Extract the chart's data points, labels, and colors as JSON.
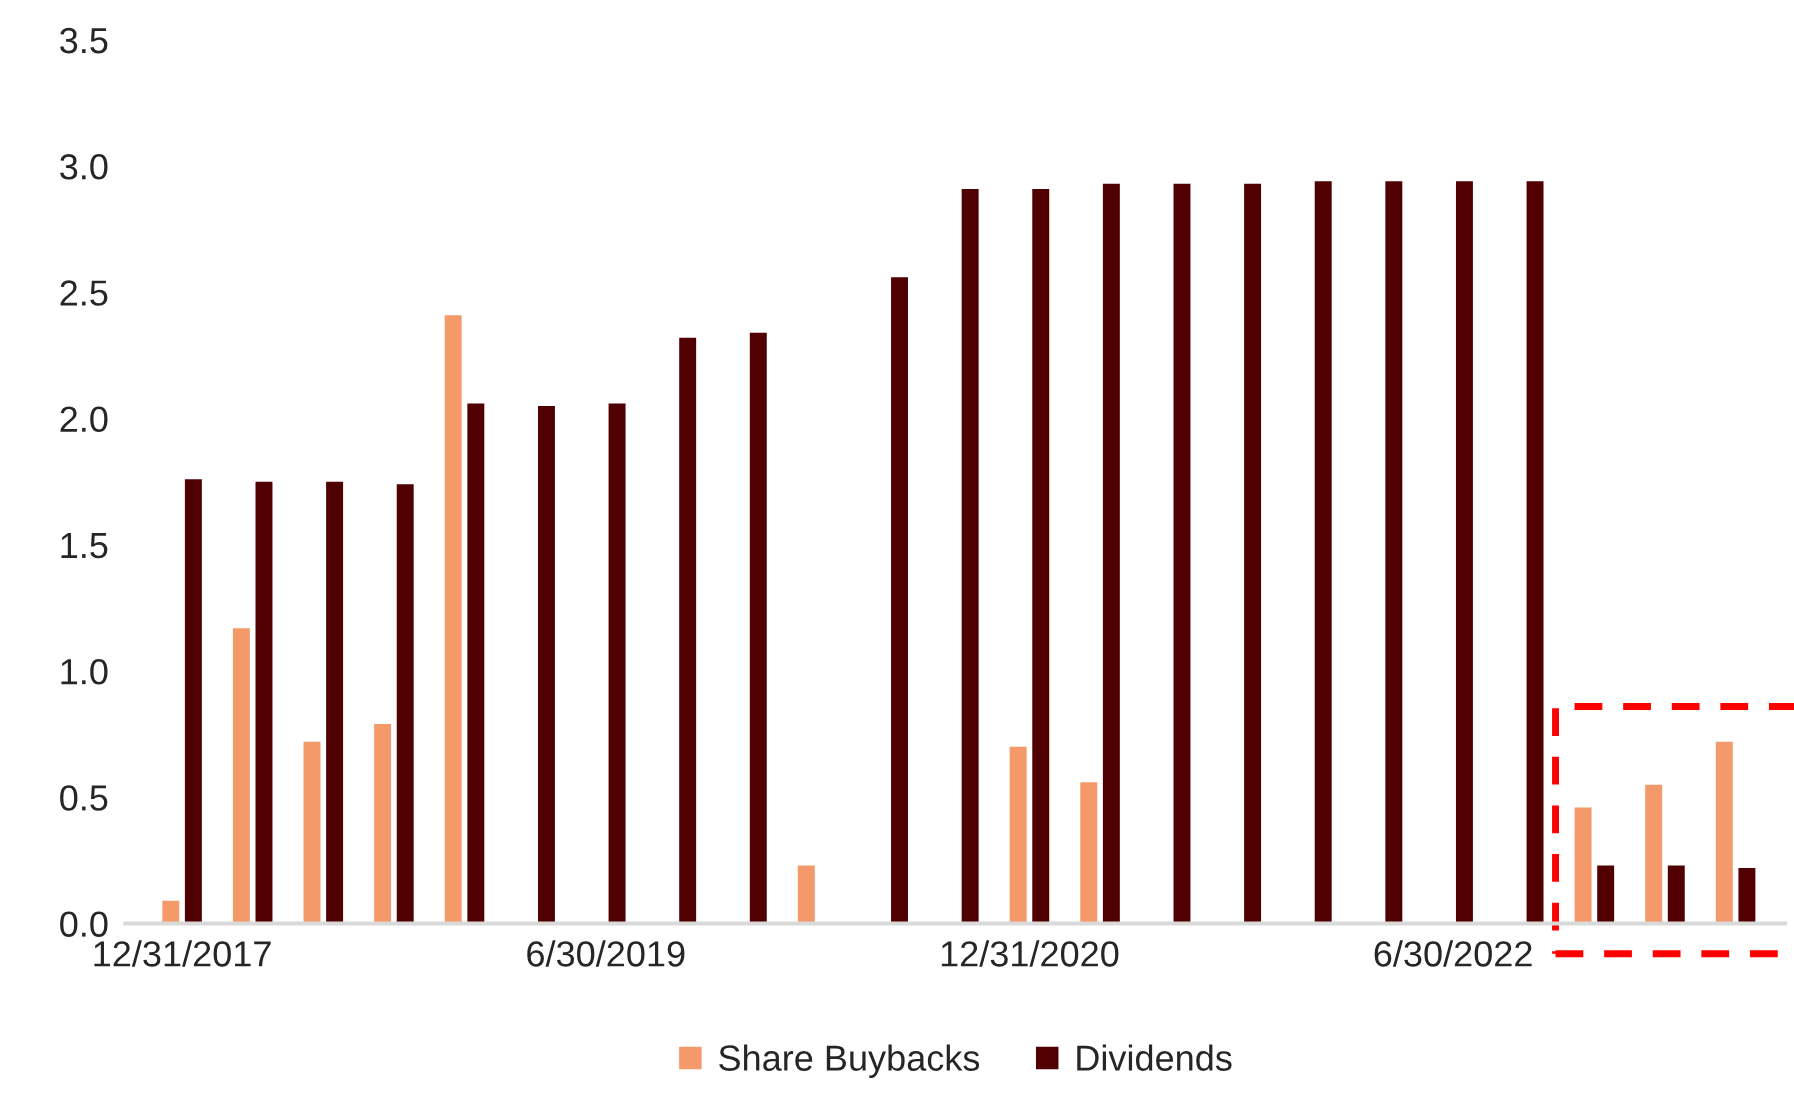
{
  "chart_data": {
    "type": "bar",
    "categories": [
      "12/31/2017",
      null,
      null,
      null,
      null,
      null,
      "6/30/2019",
      null,
      null,
      null,
      null,
      null,
      "12/31/2020",
      null,
      null,
      null,
      null,
      null,
      "6/30/2022",
      null,
      null,
      null,
      null
    ],
    "series": [
      {
        "name": "Share Buybacks",
        "color": "#f4996a",
        "values": [
          0.09,
          1.17,
          0.72,
          0.79,
          2.41,
          0,
          0,
          0,
          0,
          0.23,
          0,
          0,
          0.7,
          0.56,
          0,
          0,
          0,
          0,
          0,
          0,
          0.46,
          0.55,
          0.72
        ]
      },
      {
        "name": "Dividends",
        "color": "#500000",
        "values": [
          1.76,
          1.75,
          1.75,
          1.74,
          2.06,
          2.05,
          2.06,
          2.32,
          2.34,
          0,
          2.56,
          2.91,
          2.91,
          2.93,
          2.93,
          2.93,
          2.94,
          2.94,
          2.94,
          2.94,
          0.23,
          0.23,
          0.22
        ]
      }
    ],
    "ylim": [
      0,
      3.5
    ],
    "yticks": [
      {
        "value": 0,
        "label": "0.0"
      },
      {
        "value": 0.5,
        "label": "0.5"
      },
      {
        "value": 1,
        "label": "1.0"
      },
      {
        "value": 1.5,
        "label": "1.5"
      },
      {
        "value": 2,
        "label": "2.0"
      },
      {
        "value": 2.5,
        "label": "2.5"
      },
      {
        "value": 3,
        "label": "3.0"
      },
      {
        "value": 3.5,
        "label": "3.5"
      }
    ],
    "grid": false,
    "legend": "bottom"
  }
}
